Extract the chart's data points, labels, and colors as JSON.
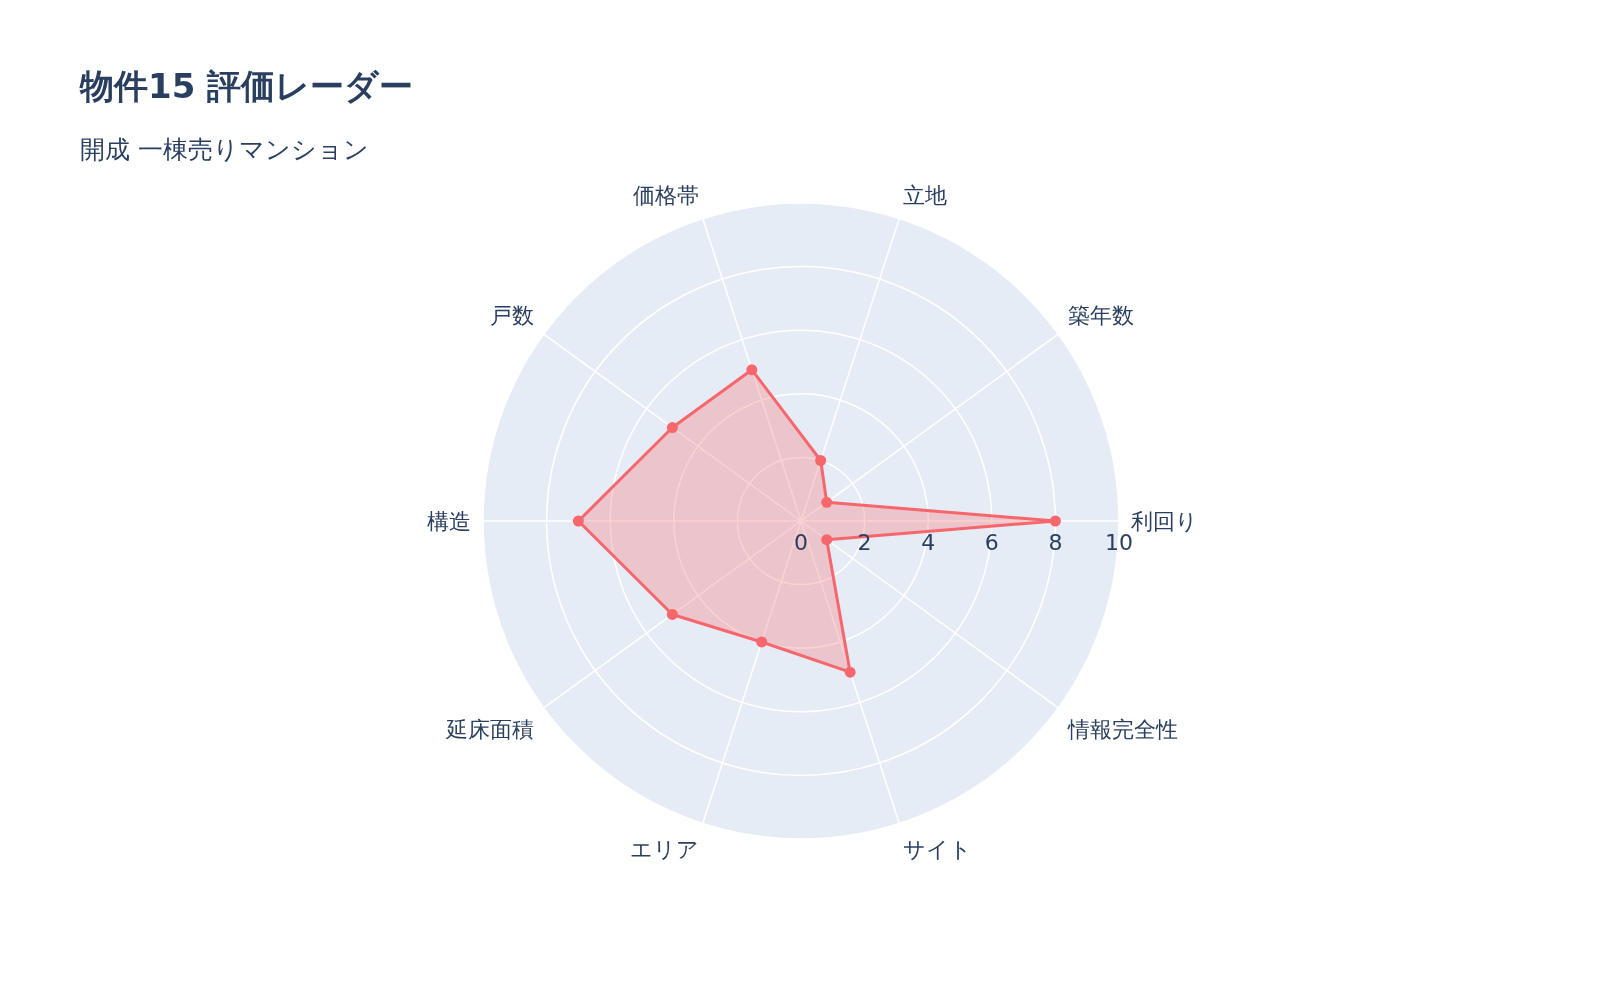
{
  "chart_data": {
    "type": "radar",
    "title": "物件15 評価レーダー",
    "subtitle": "開成 一棟売りマンション",
    "categories": [
      "立地",
      "築年数",
      "利回り",
      "情報完全性",
      "サイト",
      "エリア",
      "延床面積",
      "構造",
      "戸数",
      "価格帯"
    ],
    "series": [
      {
        "color": "#f7666b",
        "values": [
          2,
          1,
          8,
          1,
          5,
          4,
          5,
          7,
          5,
          5
        ]
      }
    ],
    "ylim": [
      0,
      10
    ],
    "yticks": [
      0,
      2,
      4,
      6,
      8,
      10
    ],
    "grid": true,
    "marker": "circle",
    "line_style": "solid"
  }
}
